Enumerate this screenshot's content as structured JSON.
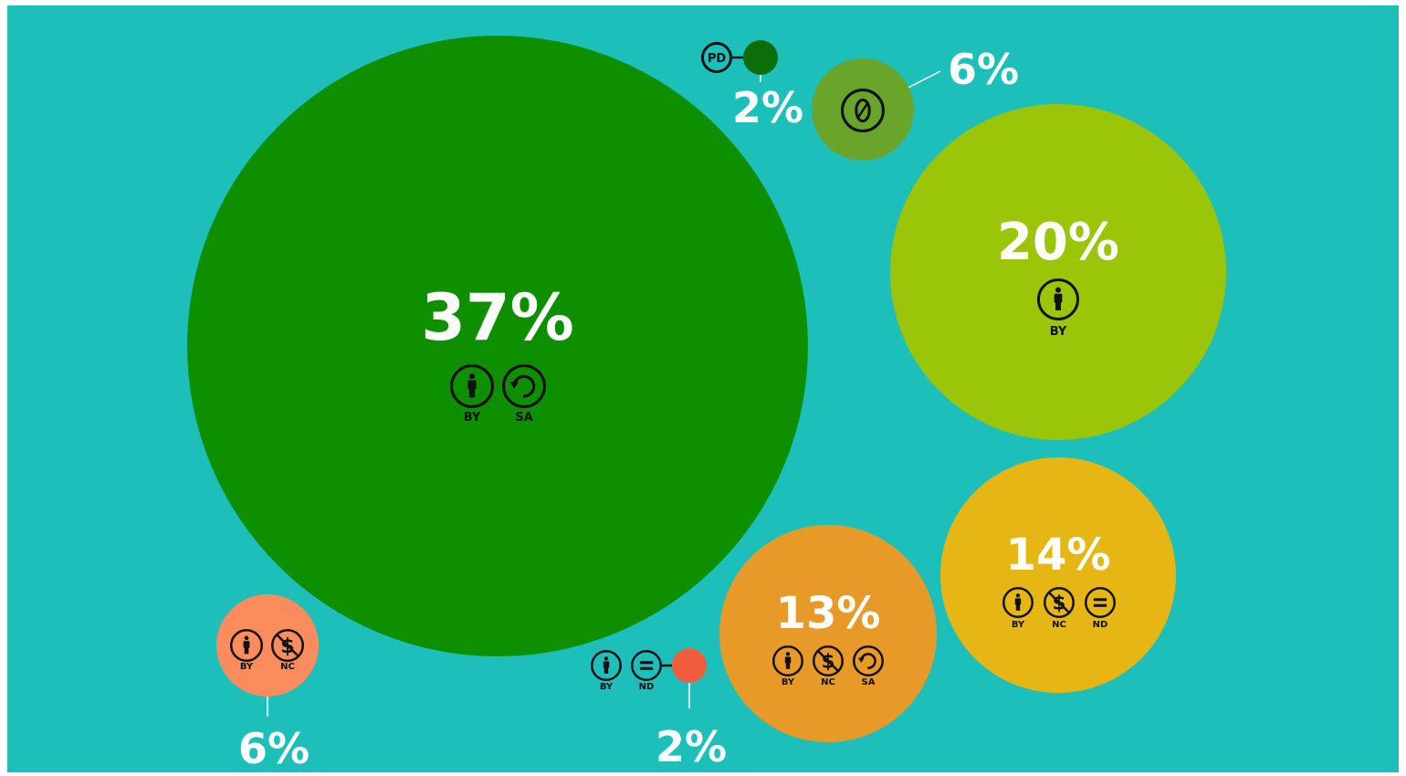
{
  "chart_data": {
    "type": "bubble",
    "title": "",
    "background": "#1dbfbb",
    "unit": "%",
    "series": [
      {
        "name": "BY SA",
        "value": 37,
        "label": "37%",
        "color": "#0e8f00",
        "icons": [
          "by-icon",
          "sa-icon"
        ],
        "icon_labels": [
          "BY",
          "SA"
        ]
      },
      {
        "name": "BY",
        "value": 20,
        "label": "20%",
        "color": "#9ac509",
        "icons": [
          "by-icon"
        ],
        "icon_labels": [
          "BY"
        ]
      },
      {
        "name": "BY NC ND",
        "value": 14,
        "label": "14%",
        "color": "#e6b614",
        "icons": [
          "by-icon",
          "nc-icon",
          "nd-icon"
        ],
        "icon_labels": [
          "BY",
          "NC",
          "ND"
        ]
      },
      {
        "name": "BY NC SA",
        "value": 13,
        "label": "13%",
        "color": "#e89a28",
        "icons": [
          "by-icon",
          "nc-icon",
          "sa-icon"
        ],
        "icon_labels": [
          "BY",
          "NC",
          "SA"
        ]
      },
      {
        "name": "CC0",
        "value": 6,
        "label": "6%",
        "color": "#6aa52b",
        "icons": [
          "cc-zero-icon"
        ],
        "icon_labels": []
      },
      {
        "name": "BY NC",
        "value": 6,
        "label": "6%",
        "color": "#fb8c5e",
        "icons": [
          "by-icon",
          "nc-icon"
        ],
        "icon_labels": [
          "BY",
          "NC"
        ]
      },
      {
        "name": "BY ND",
        "value": 2,
        "label": "2%",
        "color": "#f05c3c",
        "icons": [
          "by-icon",
          "nd-icon"
        ],
        "icon_labels": [
          "BY",
          "ND"
        ]
      },
      {
        "name": "PD",
        "value": 2,
        "label": "2%",
        "color": "#0b6e08",
        "icons": [
          "pd-icon"
        ],
        "icon_labels": [
          "PD"
        ]
      }
    ]
  }
}
